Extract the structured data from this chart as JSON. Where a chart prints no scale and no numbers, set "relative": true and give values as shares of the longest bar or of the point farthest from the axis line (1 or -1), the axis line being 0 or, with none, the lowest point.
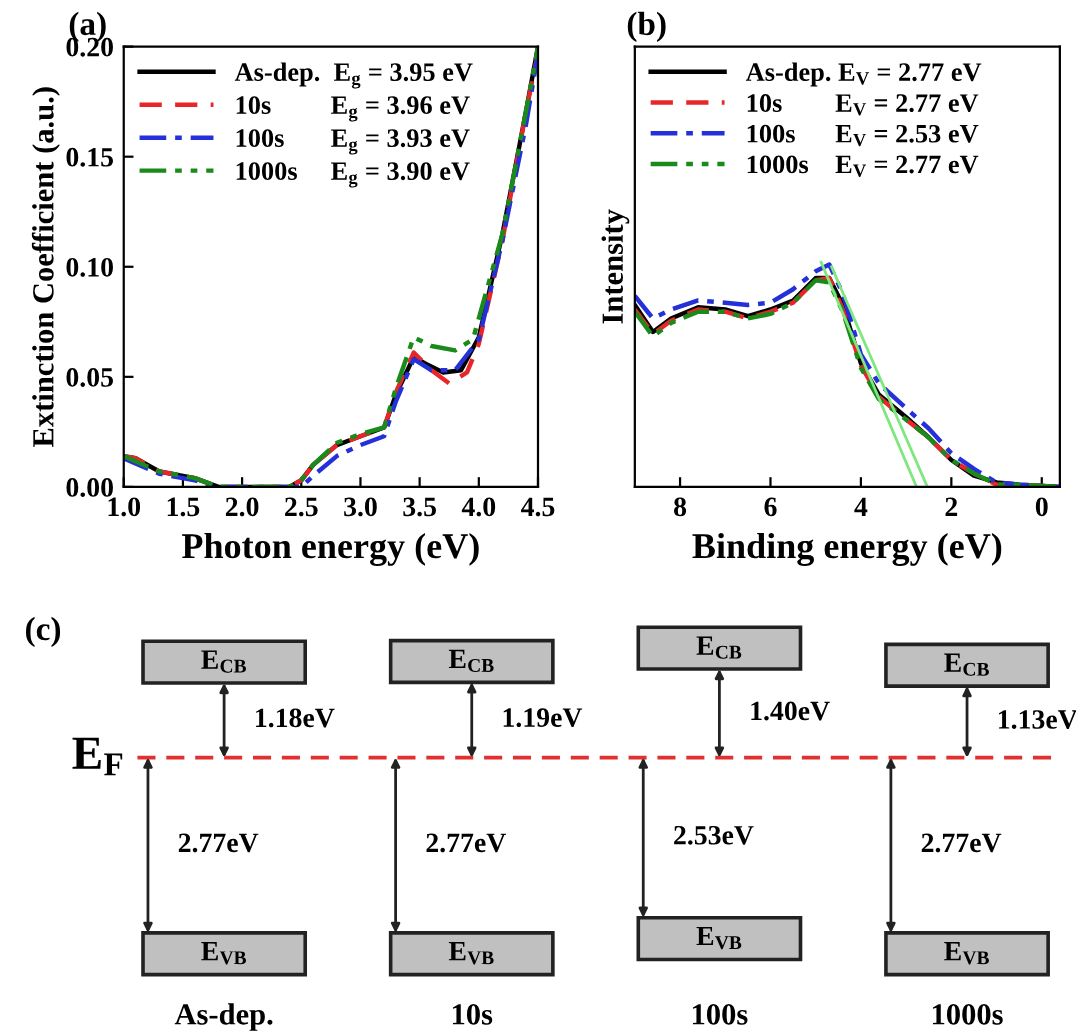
{
  "chart_data": [
    {
      "type": "line",
      "xlabel": "Photon energy (eV)",
      "ylabel": "Extinction Coefficient (a.u.)",
      "annotations": [
        "(a)"
      ],
      "xlim": [
        1.0,
        4.5
      ],
      "ylim": [
        0,
        0.2
      ],
      "xticks": [
        {
          "value": 1.0,
          "label": "1.0"
        },
        {
          "value": 1.5,
          "label": "1.5"
        },
        {
          "value": 2.0,
          "label": "2.0"
        },
        {
          "value": 2.5,
          "label": "2.5"
        },
        {
          "value": 3.0,
          "label": "3.0"
        },
        {
          "value": 3.5,
          "label": "3.5"
        },
        {
          "value": 4.0,
          "label": "4.0"
        },
        {
          "value": 4.5,
          "label": "4.5"
        }
      ],
      "yticks": [
        {
          "value": 0,
          "label": "0.00"
        },
        {
          "value": 0.05,
          "label": "0.05"
        },
        {
          "value": 0.1,
          "label": "0.10"
        },
        {
          "value": 0.15,
          "label": "0.15"
        },
        {
          "value": 0.2,
          "label": "0.20"
        }
      ],
      "legend": "top left",
      "grid": false,
      "series": [
        {
          "name": "As-dep.  E$_{g}$ = 3.95 eV",
          "color": "#000000",
          "line_style": "solid",
          "x": [
            1.0,
            1.1,
            1.3,
            1.6,
            1.8,
            2.0,
            2.4,
            2.5,
            2.6,
            2.8,
            3.0,
            3.2,
            3.3,
            3.45,
            3.55,
            3.7,
            3.85,
            4.0,
            4.2,
            4.4,
            4.5
          ],
          "values": [
            0.014,
            0.013,
            0.007,
            0.004,
            0,
            0,
            0,
            0.003,
            0.01,
            0.019,
            0.023,
            0.027,
            0.042,
            0.059,
            0.056,
            0.052,
            0.053,
            0.068,
            0.115,
            0.171,
            0.2
          ]
        },
        {
          "name": "10s         E$_{g}$ = 3.96 eV",
          "color": "#e8262a",
          "line_style": "dashed",
          "x": [
            1.0,
            1.1,
            1.3,
            1.6,
            1.8,
            2.0,
            2.4,
            2.5,
            2.6,
            2.8,
            3.0,
            3.2,
            3.3,
            3.45,
            3.6,
            3.75,
            3.9,
            4.0,
            4.2,
            4.4,
            4.5
          ],
          "values": [
            0.014,
            0.013,
            0.007,
            0.004,
            0,
            0,
            0,
            0.003,
            0.01,
            0.019,
            0.023,
            0.027,
            0.043,
            0.061,
            0.053,
            0.047,
            0.052,
            0.065,
            0.112,
            0.171,
            0.197
          ]
        },
        {
          "name": "100s       E$_{g}$ = 3.93 eV",
          "color": "#2530d8",
          "line_style": "dashdot",
          "x": [
            1.0,
            1.3,
            1.6,
            1.8,
            2.0,
            2.5,
            2.6,
            2.8,
            3.0,
            3.2,
            3.3,
            3.45,
            3.6,
            3.8,
            4.0,
            4.2,
            4.4,
            4.5
          ],
          "values": [
            0.013,
            0.006,
            0.003,
            0,
            0,
            0,
            0.005,
            0.014,
            0.019,
            0.023,
            0.039,
            0.058,
            0.053,
            0.053,
            0.067,
            0.112,
            0.165,
            0.197
          ]
        },
        {
          "name": "1000s     E$_{g}$ = 3.90 eV",
          "color": "#1a8a1a",
          "line_style": "dashdotdot",
          "x": [
            1.0,
            1.3,
            1.6,
            1.8,
            2.0,
            2.4,
            2.5,
            2.6,
            2.8,
            3.0,
            3.2,
            3.3,
            3.45,
            3.6,
            3.8,
            3.95,
            4.2,
            4.4,
            4.5
          ],
          "values": [
            0.014,
            0.007,
            0.004,
            0,
            0,
            0,
            0.003,
            0.01,
            0.02,
            0.024,
            0.027,
            0.045,
            0.068,
            0.064,
            0.062,
            0.067,
            0.115,
            0.171,
            0.2
          ]
        }
      ]
    },
    {
      "type": "line",
      "xlabel": "Binding energy (eV)",
      "ylabel": "Intensity",
      "annotations": [
        "(b)"
      ],
      "relative": true,
      "tick_labels": "x",
      "xlim": [
        9,
        -0.4
      ],
      "xticks": [
        8,
        6,
        4,
        2,
        0
      ],
      "legend": "top left",
      "grid": false,
      "series": [
        {
          "name": "As-dep. E$_{V}$ = 2.77 eV",
          "color": "#000000",
          "line_style": "solid",
          "x": [
            9,
            8.6,
            8.2,
            7.6,
            7.0,
            6.5,
            6.0,
            5.5,
            5.0,
            4.7,
            4.4,
            4.0,
            3.6,
            3.0,
            2.5,
            2.0,
            1.5,
            1.0,
            0.5,
            -0.4
          ],
          "values": [
            0.81,
            0.69,
            0.75,
            0.8,
            0.79,
            0.76,
            0.79,
            0.83,
            0.93,
            0.93,
            0.81,
            0.55,
            0.41,
            0.31,
            0.22,
            0.12,
            0.05,
            0.02,
            0.01,
            0
          ]
        },
        {
          "name": "10s        E$_{V}$ = 2.77 eV",
          "color": "#e8262a",
          "line_style": "dashed",
          "x": [
            9,
            8.6,
            8.2,
            7.6,
            7.0,
            6.5,
            6.0,
            5.5,
            5.0,
            4.7,
            4.4,
            4.0,
            3.6,
            3.0,
            2.5,
            2.0,
            1.5,
            1.0,
            0.5,
            -0.4
          ],
          "values": [
            0.79,
            0.68,
            0.74,
            0.79,
            0.78,
            0.75,
            0.78,
            0.82,
            0.92,
            0.93,
            0.79,
            0.54,
            0.4,
            0.3,
            0.22,
            0.12,
            0.06,
            0.01,
            0.01,
            0
          ]
        },
        {
          "name": "100s      E$_{V}$ = 2.53 eV",
          "color": "#2530d8",
          "line_style": "dashdot",
          "x": [
            9,
            8.6,
            8.2,
            7.6,
            7.0,
            6.5,
            6.0,
            5.5,
            5.0,
            4.7,
            4.4,
            4.0,
            3.6,
            3.0,
            2.5,
            2.0,
            1.5,
            1.0,
            0.5,
            -0.4
          ],
          "values": [
            0.85,
            0.75,
            0.79,
            0.83,
            0.82,
            0.81,
            0.82,
            0.88,
            0.96,
            0.99,
            0.86,
            0.59,
            0.46,
            0.35,
            0.26,
            0.15,
            0.08,
            0.02,
            0.01,
            0
          ]
        },
        {
          "name": "1000s    E$_{V}$ = 2.77 eV",
          "color": "#1a8a1a",
          "line_style": "dashdotdot",
          "x": [
            9,
            8.6,
            8.2,
            7.6,
            7.0,
            6.5,
            6.0,
            5.5,
            5.0,
            4.7,
            4.4,
            4.0,
            3.6,
            3.0,
            2.5,
            2.0,
            1.5,
            1.0,
            0.5,
            -0.4
          ],
          "values": [
            0.78,
            0.67,
            0.73,
            0.78,
            0.78,
            0.75,
            0.77,
            0.82,
            0.92,
            0.91,
            0.78,
            0.53,
            0.39,
            0.3,
            0.22,
            0.12,
            0.06,
            0.01,
            0.01,
            0
          ]
        },
        {
          "color": "#7de87d",
          "line_style": "solid",
          "x": [
            4.88,
            2.77
          ],
          "values": [
            1.0,
            0
          ]
        },
        {
          "color": "#7de87d",
          "line_style": "solid",
          "x": [
            4.65,
            2.53
          ],
          "values": [
            0.98,
            0
          ]
        }
      ]
    },
    {
      "type": "other",
      "annotations": [
        "(c)",
        "E$_{F}$"
      ],
      "categories": [
        "As-dep.",
        "10s",
        "100s",
        "1000s"
      ],
      "series": [
        {
          "name": "E$_{CB}$",
          "values": [
            1.18,
            1.19,
            1.4,
            1.13
          ],
          "value_labels": [
            "1.18eV",
            "1.19eV",
            "1.40eV",
            "1.13eV"
          ]
        },
        {
          "name": "E$_{VB}$",
          "values": [
            2.77,
            2.77,
            2.53,
            2.77
          ],
          "value_labels": [
            "2.77eV",
            "2.77eV",
            "2.53eV",
            "2.77eV"
          ]
        }
      ]
    }
  ]
}
